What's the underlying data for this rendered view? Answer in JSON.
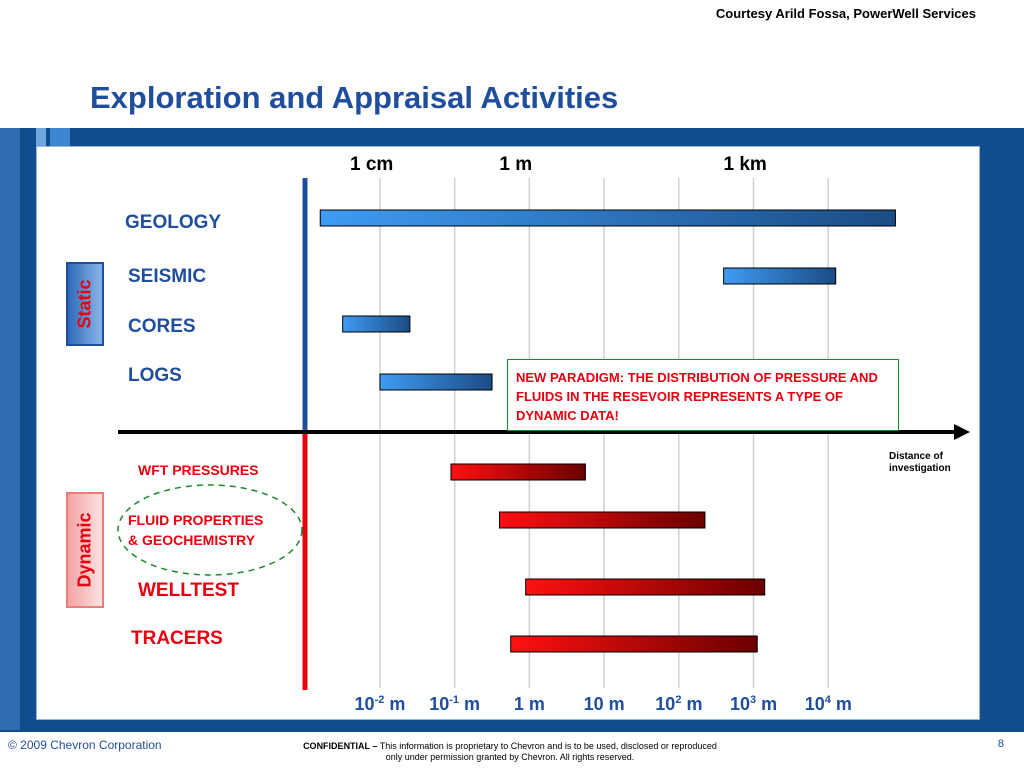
{
  "header": {
    "courtesy": "Courtesy Arild Fossa, PowerWell Services",
    "title": "Exploration and Appraisal Activities"
  },
  "footer": {
    "copyright": "© 2009 Chevron Corporation",
    "page_number": "8",
    "confidential_bold": "CONFIDENTIAL –",
    "confidential_text": " This information is proprietary to Chevron and is to be used, disclosed or reproduced",
    "confidential_text2": "only under permission granted by Chevron.  All rights reserved."
  },
  "colors": {
    "static": "#1f4e9c",
    "dynamic": "#e8000e",
    "bar_static_start": "#3f9bf3",
    "bar_static_end": "#1b4c84",
    "bar_dynamic_start": "#ff1010",
    "bar_dynamic_end": "#6a0000"
  },
  "chart_data": {
    "type": "bar",
    "orientation": "horizontal-range",
    "title": "Exploration and Appraisal Activities",
    "xlabel": "Distance of investigation",
    "x_scale": "log10 meters",
    "xlim_log10": [
      -3.0,
      5.2
    ],
    "top_scale_labels": [
      {
        "label": "1 cm",
        "log10": -2
      },
      {
        "label": "1 m",
        "log10": 0
      },
      {
        "label": "1 km",
        "log10": 3
      }
    ],
    "ticks": [
      {
        "log10": -2,
        "base": "10",
        "exp": "-2",
        "unit": " m"
      },
      {
        "log10": -1,
        "base": "10",
        "exp": "-1",
        "unit": " m"
      },
      {
        "log10": 0,
        "base": "1 m",
        "exp": "",
        "unit": ""
      },
      {
        "log10": 1,
        "base": "10 m",
        "exp": "",
        "unit": ""
      },
      {
        "log10": 2,
        "base": "10",
        "exp": "2",
        "unit": " m"
      },
      {
        "log10": 3,
        "base": "10",
        "exp": "3",
        "unit": " m"
      },
      {
        "log10": 4,
        "base": "10",
        "exp": "4",
        "unit": " m"
      }
    ],
    "groups": {
      "static": "Static",
      "dynamic": "Dynamic"
    },
    "series": [
      {
        "name": "GEOLOGY",
        "group": "static",
        "from_log10": -2.8,
        "to_log10": 4.9
      },
      {
        "name": "SEISMIC",
        "group": "static",
        "from_log10": 2.6,
        "to_log10": 4.1
      },
      {
        "name": "CORES",
        "group": "static",
        "from_log10": -2.5,
        "to_log10": -1.6
      },
      {
        "name": "LOGS",
        "group": "static",
        "from_log10": -2.0,
        "to_log10": -0.5
      },
      {
        "name": "WFT PRESSURES",
        "group": "dynamic",
        "from_log10": -1.05,
        "to_log10": 0.75
      },
      {
        "name": "FLUID PROPERTIES\n& GEOCHEMISTRY",
        "group": "dynamic",
        "from_log10": -0.4,
        "to_log10": 2.35
      },
      {
        "name": "WELLTEST",
        "group": "dynamic",
        "from_log10": -0.05,
        "to_log10": 3.15
      },
      {
        "name": "TRACERS",
        "group": "dynamic",
        "from_log10": -0.25,
        "to_log10": 3.05
      }
    ],
    "annotation": "NEW PARADIGM: THE DISTRIBUTION OF PRESSURE AND FLUIDS IN THE RESEVOIR REPRESENTS A TYPE OF DYNAMIC DATA!",
    "axis_note": "Distance of\ninvestigation"
  }
}
